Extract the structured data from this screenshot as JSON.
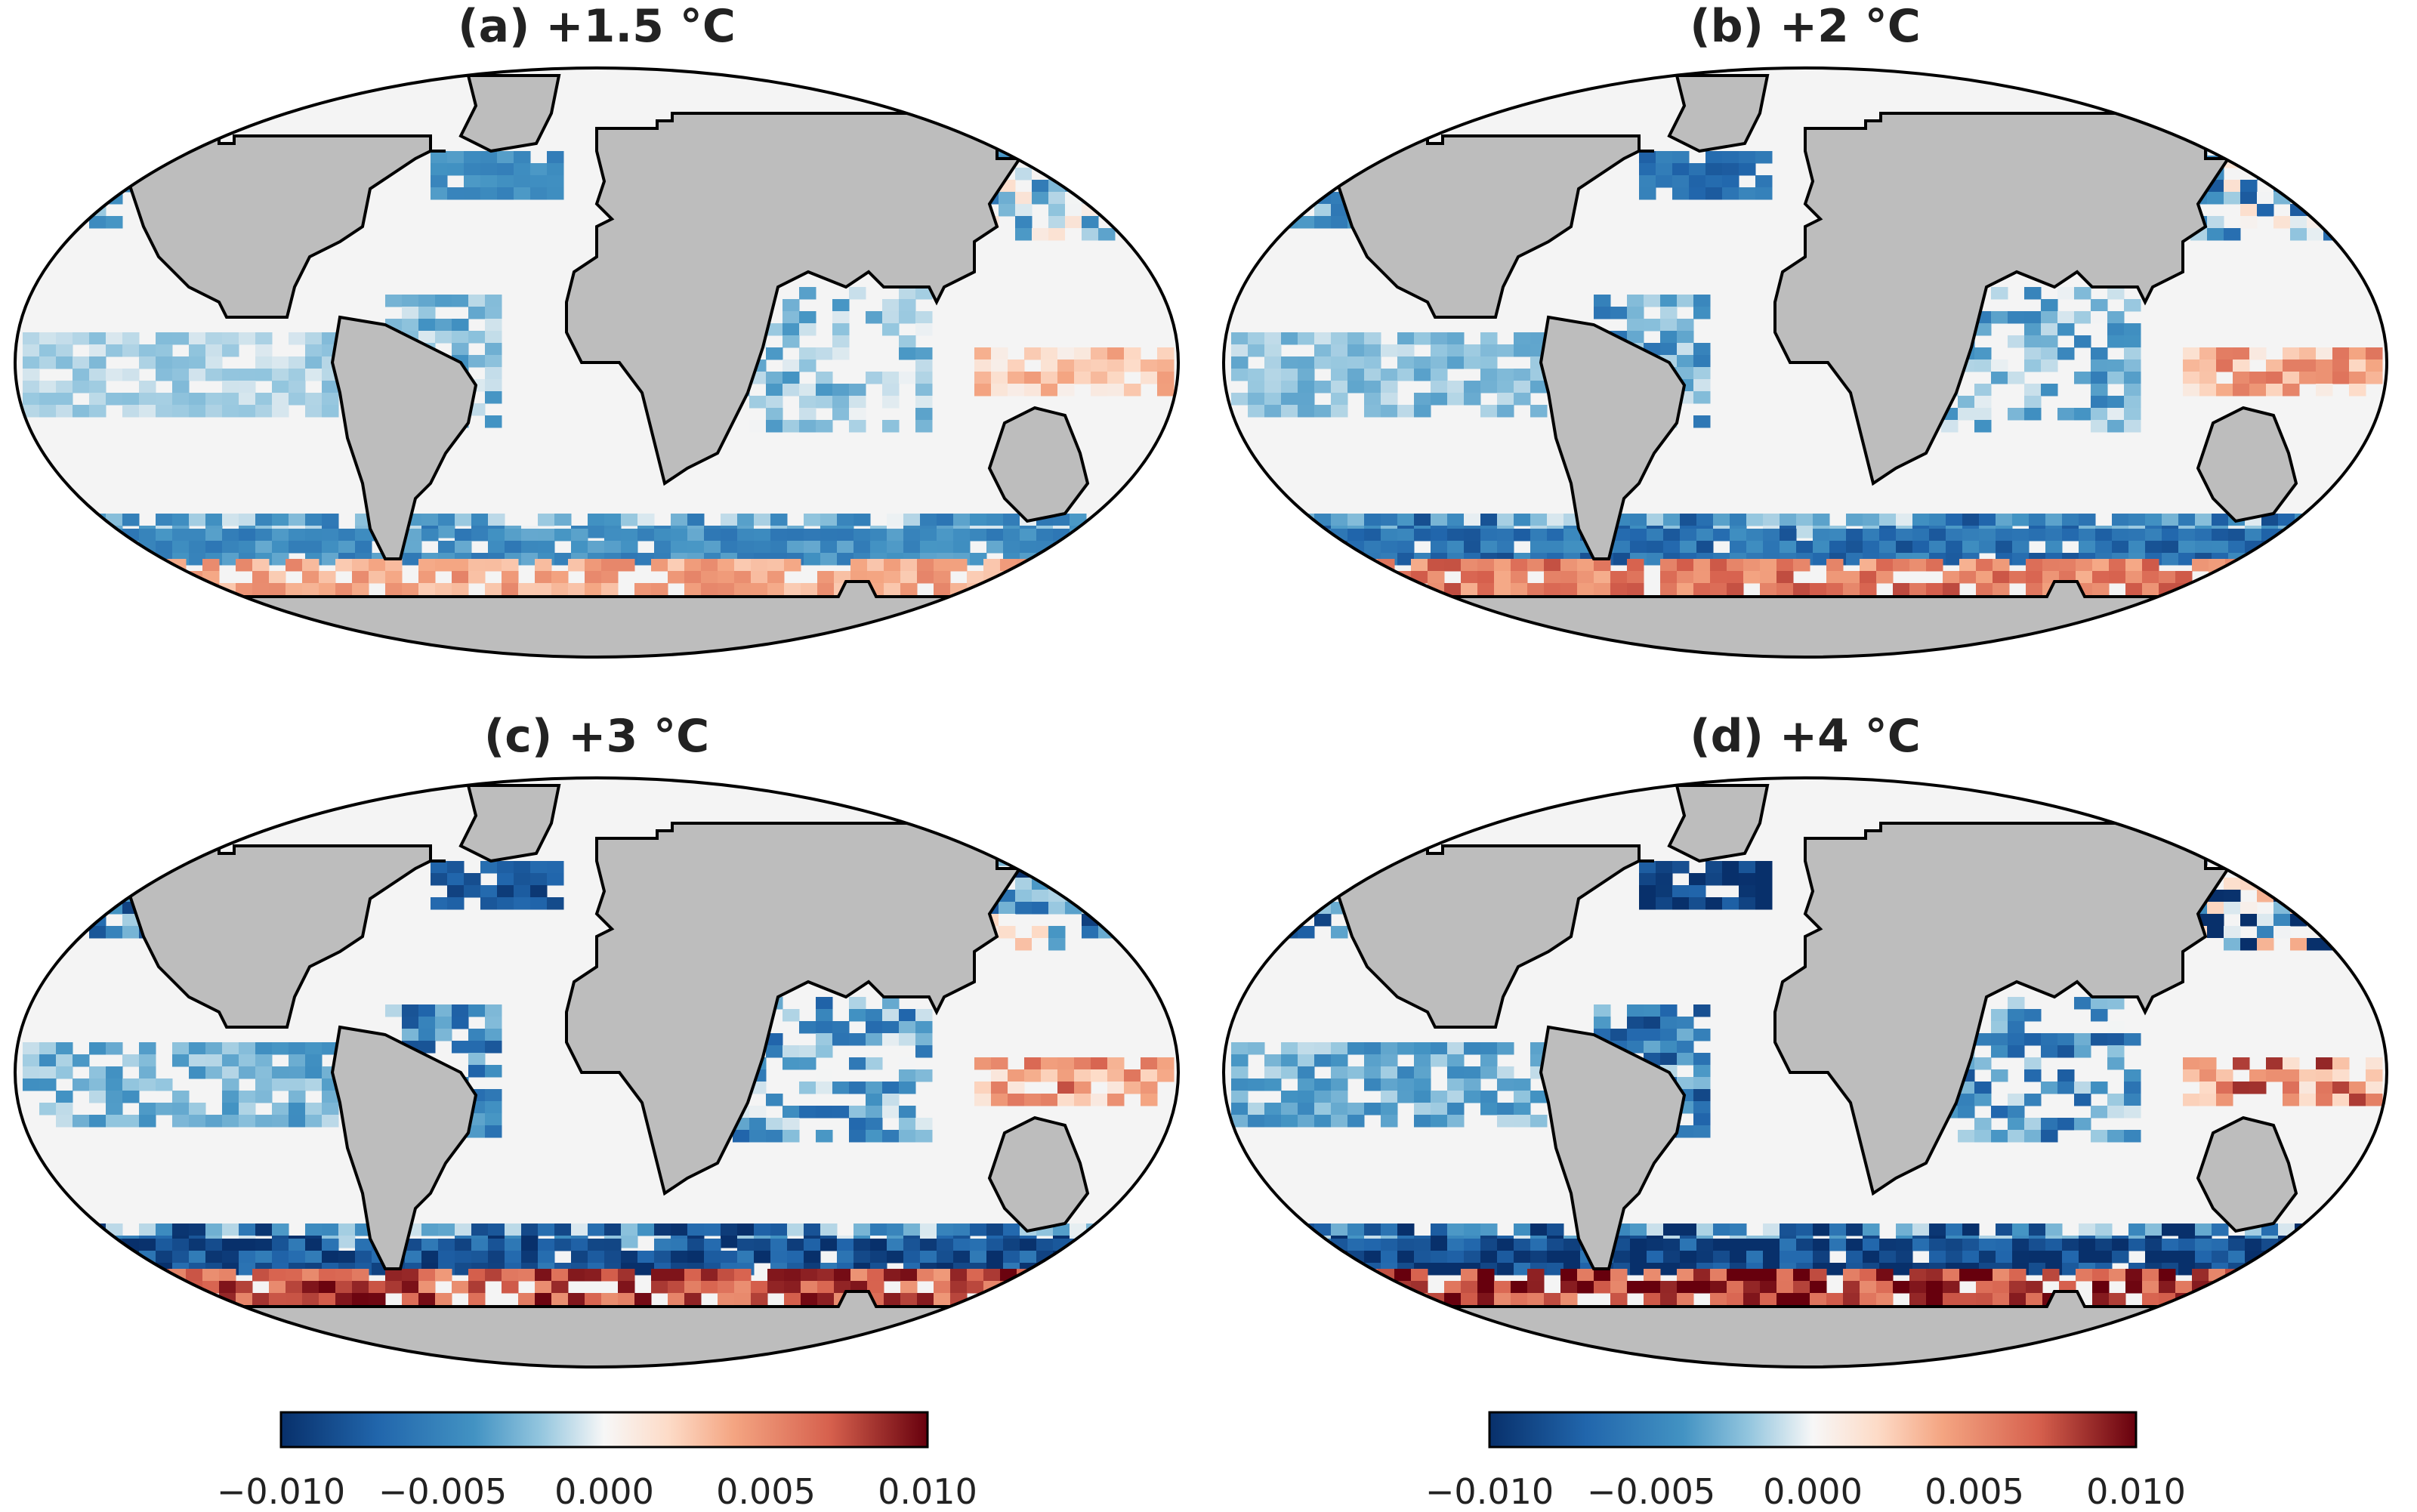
{
  "panels": [
    {
      "label": "(a) +1.5 °C"
    },
    {
      "label": "(b) +2 °C"
    },
    {
      "label": "(c) +3 °C"
    },
    {
      "label": "(d) +4 °C"
    }
  ],
  "colorbar": {
    "ticks": [
      "−0.010",
      "−0.005",
      "0.000",
      "0.005",
      "0.010"
    ],
    "range": [
      -0.01,
      0.01
    ],
    "colormap": "RdBu_r",
    "colors": {
      "neg": "#08306b",
      "mid": "#f5f5f5",
      "pos": "#67000d"
    }
  },
  "chart_data": {
    "type": "heatmap",
    "description_units": "change (colorbar units)",
    "vmin": -0.01,
    "vmax": 0.01,
    "land_color": "#bdbdbd",
    "ocean_color": "#f4f4f4"
  }
}
